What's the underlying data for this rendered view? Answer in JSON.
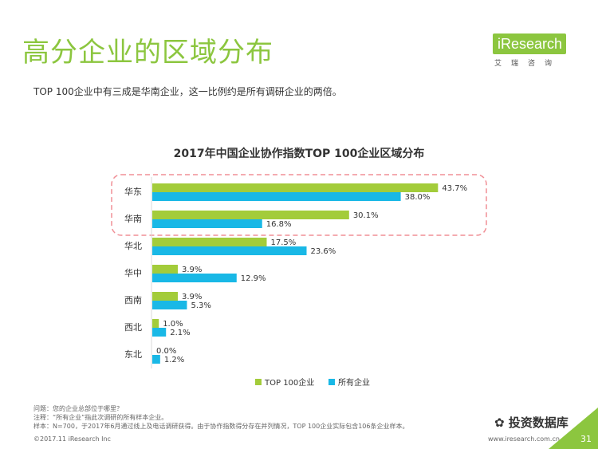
{
  "page": {
    "title": "高分企业的区域分布",
    "subtitle": "TOP 100企业中有三成是华南企业，这一比例约是所有调研企业的两倍。",
    "logo_text": "iResearch",
    "logo_sub": "艾瑞咨询",
    "notes": [
      "问题：您的企业总部位于哪里？",
      "注释：“所有企业”指此次调研的所有样本企业。",
      "样本：N=700，于2017年6月通过线上及电话调研获得。由于协作指数得分存在并列情况，TOP 100企业实际包含106条企业样本。"
    ],
    "footer_left": "©2017.11 iResearch Inc",
    "footer_right": "www.iresearch.com.cn",
    "watermark": "投资数据库",
    "page_number": "31"
  },
  "chart_data": {
    "type": "bar",
    "orientation": "horizontal",
    "title": "2017年中国企业协作指数TOP 100企业区域分布",
    "categories": [
      "华东",
      "华南",
      "华北",
      "华中",
      "西南",
      "西北",
      "东北"
    ],
    "series": [
      {
        "name": "TOP 100企业",
        "values": [
          43.7,
          30.1,
          17.5,
          3.9,
          3.9,
          1.0,
          0.0
        ],
        "color": "#a3cc3a"
      },
      {
        "name": "所有企业",
        "values": [
          38.0,
          16.8,
          23.6,
          12.9,
          5.3,
          2.1,
          1.2
        ],
        "color": "#19b8e6"
      }
    ],
    "value_suffix": "%",
    "xlim": [
      0,
      50
    ],
    "highlight_categories": [
      "华东",
      "华南"
    ],
    "highlight_color": "#f08f96"
  }
}
